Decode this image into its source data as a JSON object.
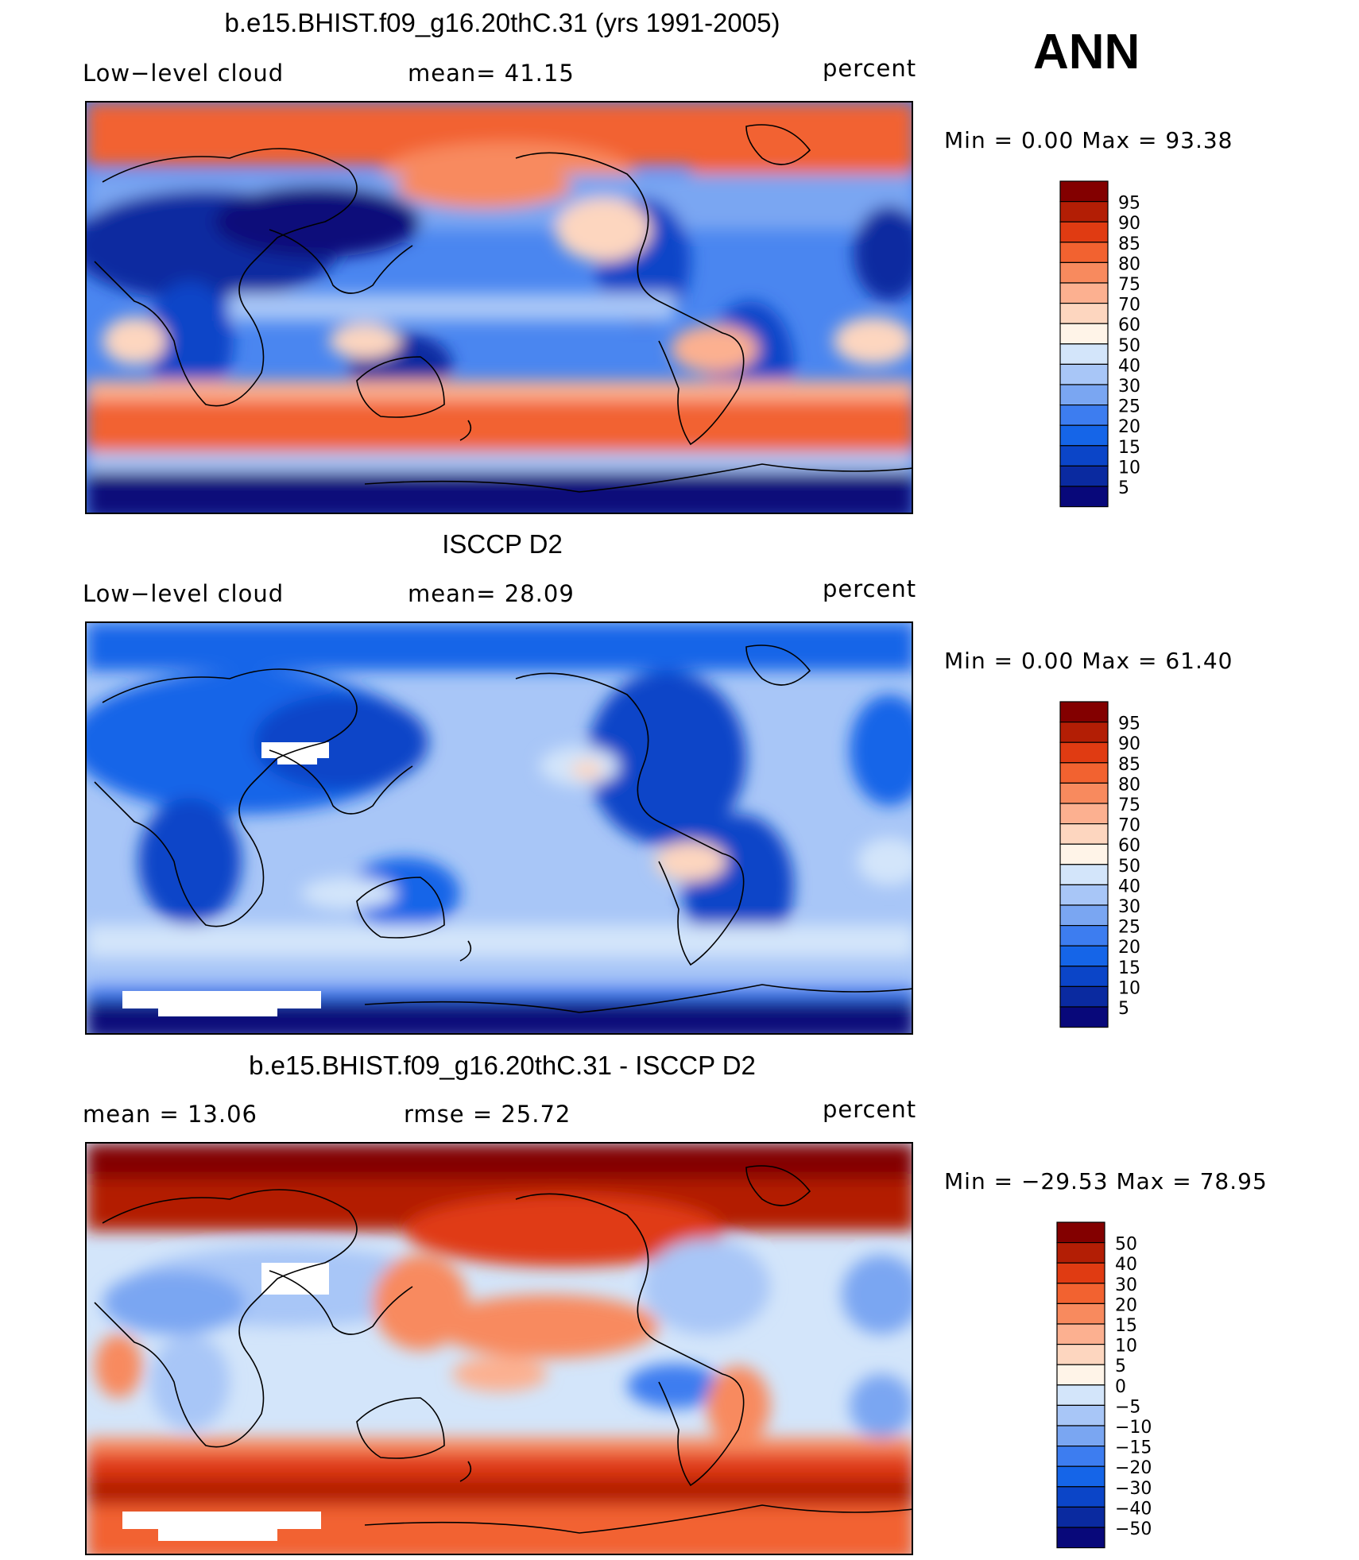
{
  "season": "ANN",
  "colors": [
    "#08087a",
    "#0a2aa0",
    "#0b45c8",
    "#1565e8",
    "#3d7df0",
    "#7aa6f2",
    "#a8c6f7",
    "#d3e5fa",
    "#fff4e8",
    "#fdd6bf",
    "#fcb090",
    "#f88a5e",
    "#f26230",
    "#e03b12",
    "#b31e05",
    "#830000"
  ],
  "panels": [
    {
      "id": "model",
      "title": "b.e15.BHIST.f09_g16.20thC.31 (yrs 1991-2005)",
      "left_label": "Low−level cloud",
      "mid_label": "mean=   41.15",
      "units": "percent",
      "minmax": "Min  =     0.00  Max  =    93.38",
      "colorbar": [
        "95",
        "90",
        "85",
        "80",
        "75",
        "70",
        "60",
        "50",
        "40",
        "30",
        "25",
        "20",
        "15",
        "10",
        "5"
      ]
    },
    {
      "id": "obs",
      "title": "ISCCP D2",
      "left_label": "Low−level cloud",
      "mid_label": "mean=   28.09",
      "units": "percent",
      "minmax": "Min  =     0.00  Max  =    61.40",
      "colorbar": [
        "95",
        "90",
        "85",
        "80",
        "75",
        "70",
        "60",
        "50",
        "40",
        "30",
        "25",
        "20",
        "15",
        "10",
        "5"
      ]
    },
    {
      "id": "diff",
      "title": "b.e15.BHIST.f09_g16.20thC.31 - ISCCP D2",
      "left_label": "mean  =     13.06",
      "mid_label": "rmse  =     25.72",
      "units": "percent",
      "minmax": "Min  = −29.53  Max  =    78.95",
      "colorbar": [
        "50",
        "40",
        "30",
        "20",
        "15",
        "10",
        "5",
        "0",
        "−5",
        "−10",
        "−15",
        "−20",
        "−30",
        "−40",
        "−50"
      ]
    }
  ],
  "chart_data": [
    {
      "type": "heatmap",
      "title": "b.e15.BHIST.f09_g16.20thC.31 (yrs 1991-2005)",
      "variable": "Low−level cloud",
      "units": "percent",
      "mean": 41.15,
      "min": 0.0,
      "max": 93.38,
      "levels": [
        5,
        10,
        15,
        20,
        25,
        30,
        40,
        50,
        60,
        70,
        75,
        80,
        85,
        90,
        95
      ]
    },
    {
      "type": "heatmap",
      "title": "ISCCP D2",
      "variable": "Low−level cloud",
      "units": "percent",
      "mean": 28.09,
      "min": 0.0,
      "max": 61.4,
      "levels": [
        5,
        10,
        15,
        20,
        25,
        30,
        40,
        50,
        60,
        70,
        75,
        80,
        85,
        90,
        95
      ]
    },
    {
      "type": "heatmap",
      "title": "b.e15.BHIST.f09_g16.20thC.31 - ISCCP D2",
      "units": "percent",
      "mean": 13.06,
      "rmse": 25.72,
      "min": -29.53,
      "max": 78.95,
      "levels": [
        -50,
        -40,
        -30,
        -20,
        -15,
        -10,
        -5,
        0,
        5,
        10,
        15,
        20,
        30,
        40,
        50
      ]
    }
  ]
}
